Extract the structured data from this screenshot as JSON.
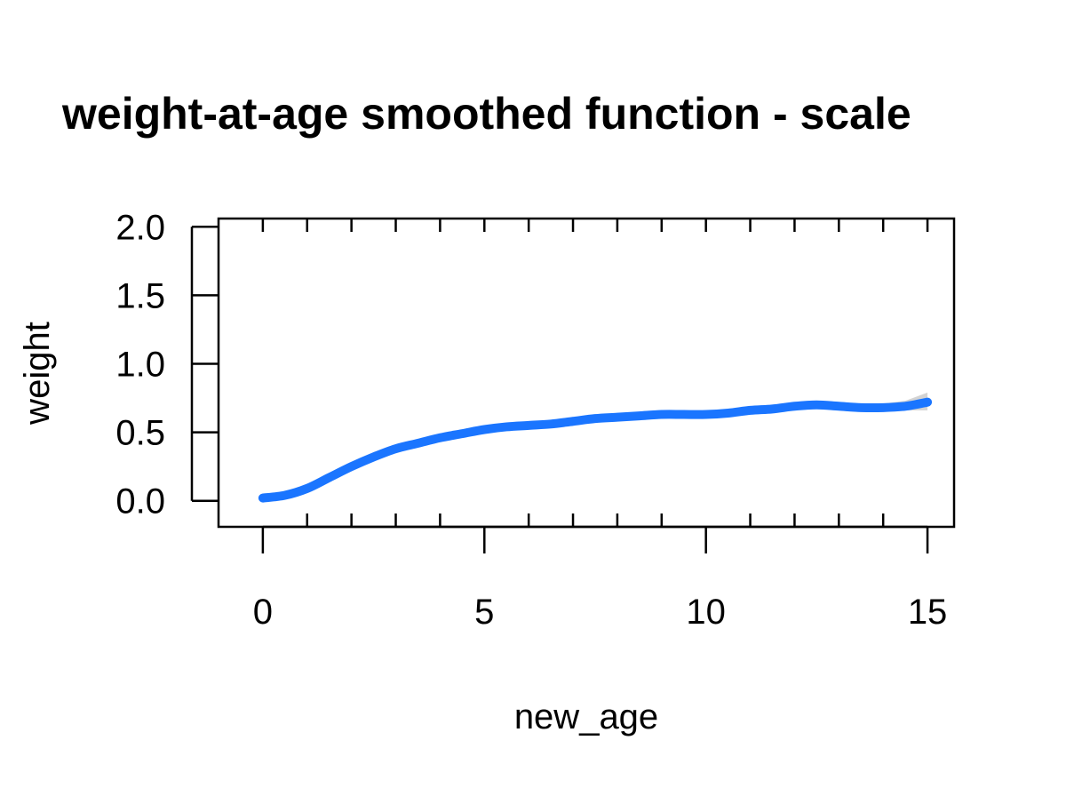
{
  "chart_data": {
    "type": "line",
    "title": "weight-at-age smoothed function - scale",
    "xlabel": "new_age",
    "ylabel": "weight",
    "xlim": [
      -1,
      15.6
    ],
    "ylim": [
      -0.19,
      2.06
    ],
    "x_ticks": [
      0,
      5,
      10,
      15
    ],
    "x_tick_labels": [
      "0",
      "5",
      "10",
      "15"
    ],
    "x_minor_ticks": [
      1,
      2,
      3,
      4,
      6,
      7,
      8,
      9,
      11,
      12,
      13,
      14
    ],
    "y_ticks": [
      0.0,
      0.5,
      1.0,
      1.5,
      2.0
    ],
    "y_tick_labels": [
      "0.0",
      "0.5",
      "1.0",
      "1.5",
      "2.0"
    ],
    "grid": false,
    "legend": "none",
    "series": [
      {
        "x": [
          0,
          0.5,
          1,
          1.5,
          2,
          2.5,
          3,
          3.5,
          4,
          4.5,
          5,
          5.5,
          6,
          6.5,
          7,
          7.5,
          8,
          8.5,
          9,
          9.5,
          10,
          10.5,
          11,
          11.5,
          12,
          12.5,
          13,
          13.5,
          14,
          14.5,
          15
        ],
        "values": [
          0.02,
          0.04,
          0.09,
          0.17,
          0.25,
          0.32,
          0.38,
          0.42,
          0.46,
          0.49,
          0.52,
          0.54,
          0.55,
          0.56,
          0.58,
          0.6,
          0.61,
          0.62,
          0.63,
          0.63,
          0.63,
          0.64,
          0.66,
          0.67,
          0.69,
          0.7,
          0.69,
          0.68,
          0.68,
          0.69,
          0.72
        ],
        "lower": [
          0.01,
          0.03,
          0.08,
          0.16,
          0.24,
          0.31,
          0.37,
          0.41,
          0.45,
          0.48,
          0.51,
          0.53,
          0.54,
          0.55,
          0.57,
          0.59,
          0.6,
          0.61,
          0.62,
          0.62,
          0.62,
          0.62,
          0.64,
          0.66,
          0.67,
          0.68,
          0.67,
          0.66,
          0.65,
          0.66,
          0.66
        ],
        "upper": [
          0.03,
          0.05,
          0.1,
          0.18,
          0.26,
          0.33,
          0.39,
          0.43,
          0.47,
          0.5,
          0.53,
          0.55,
          0.56,
          0.57,
          0.59,
          0.61,
          0.62,
          0.63,
          0.64,
          0.64,
          0.64,
          0.66,
          0.68,
          0.69,
          0.71,
          0.72,
          0.71,
          0.7,
          0.71,
          0.73,
          0.79
        ]
      }
    ],
    "colors": {
      "line": "#1a75ff",
      "ribbon": "#d3d3d3",
      "axis": "#000000"
    }
  }
}
